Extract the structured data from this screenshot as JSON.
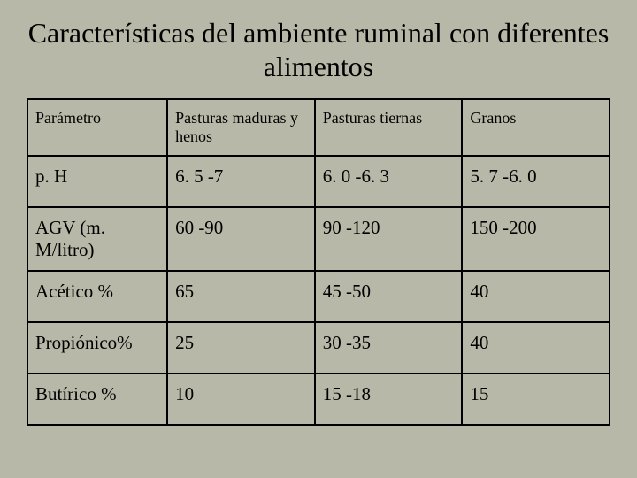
{
  "title": "Características del ambiente ruminal con diferentes alimentos",
  "table": {
    "headers": [
      "Parámetro",
      "Pasturas maduras y henos",
      "Pasturas tiernas",
      "Granos"
    ],
    "rows": [
      [
        "p. H",
        "6. 5 -7",
        "6. 0 -6. 3",
        "5. 7 -6. 0"
      ],
      [
        "AGV (m. M/litro)",
        "60 -90",
        "90 -120",
        "150 -200"
      ],
      [
        "Acético %",
        "65",
        "45 -50",
        "40"
      ],
      [
        "Propiónico%",
        "25",
        "30 -35",
        "40"
      ],
      [
        "Butírico %",
        "10",
        "15 -18",
        "15"
      ]
    ]
  },
  "style": {
    "background_color": "#b8b8a8",
    "text_color": "#000000",
    "border_color": "#000000",
    "title_fontsize": 32,
    "header_fontsize": 18,
    "cell_fontsize": 21,
    "font_family": "Times New Roman"
  }
}
